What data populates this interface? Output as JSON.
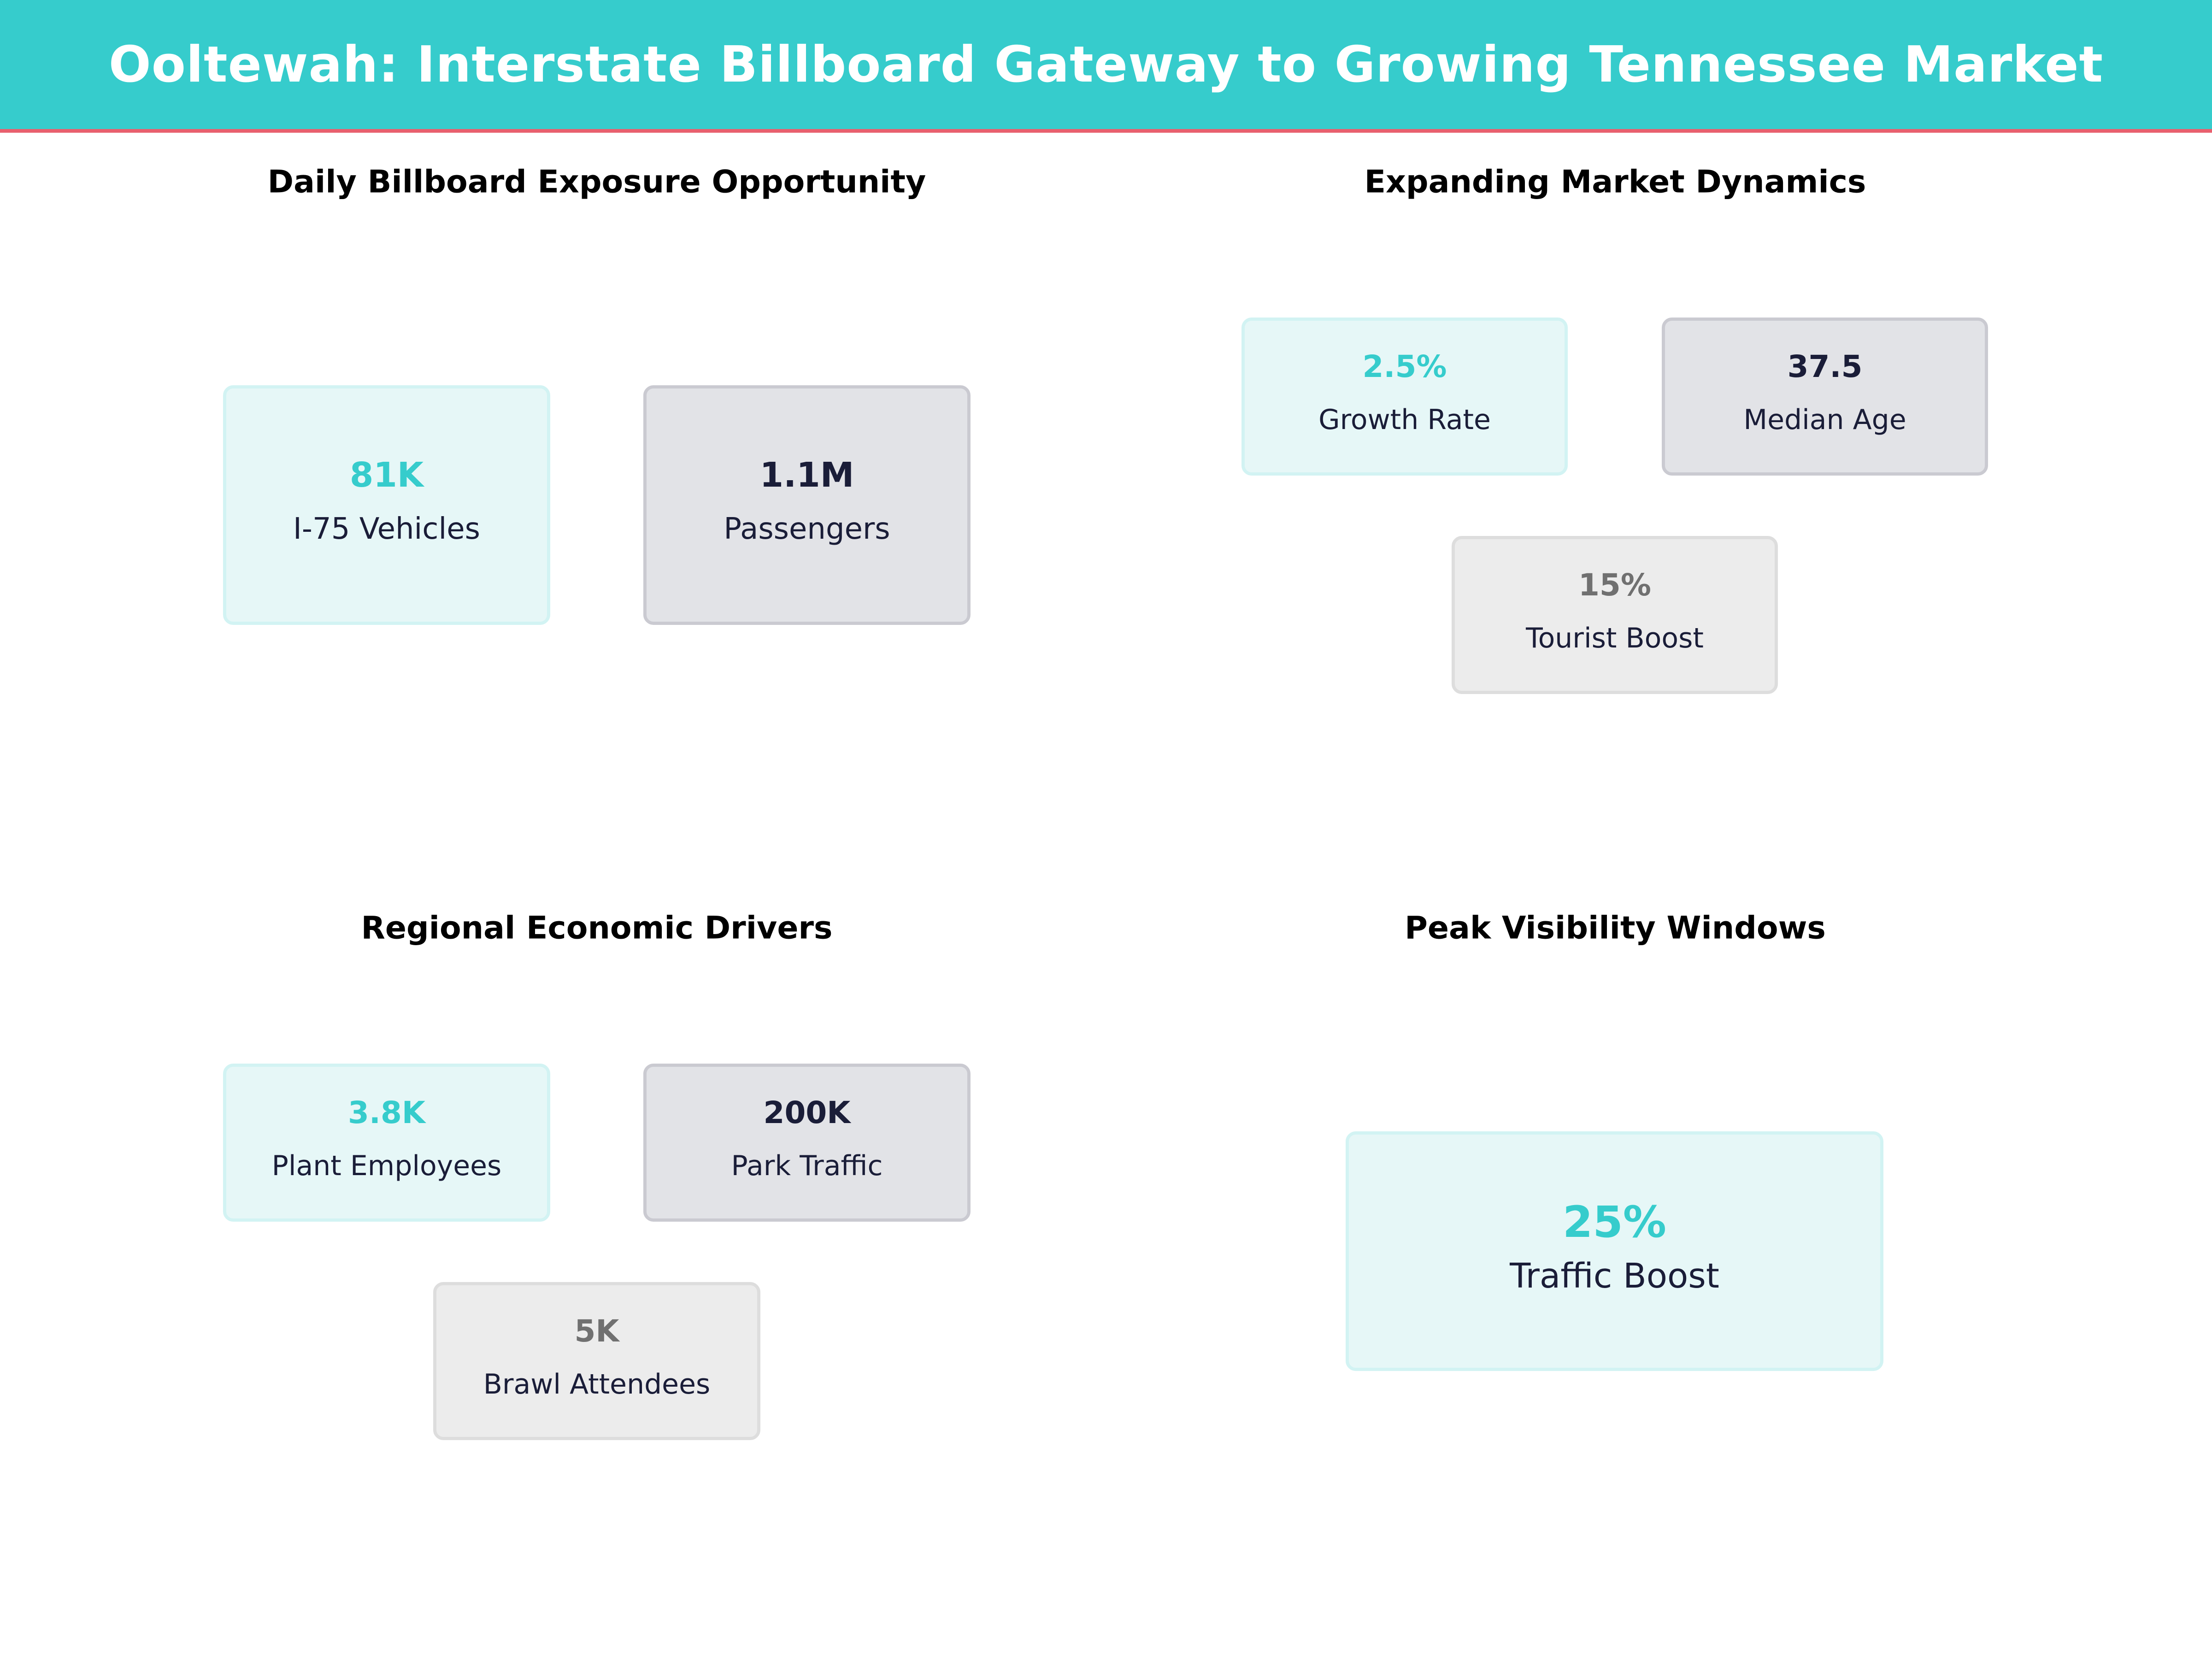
{
  "title": "Ooltewah: Interstate Billboard Gateway to Growing Tennessee Market",
  "colors": {
    "accent": "#36CCCC",
    "header_rule": "#E8606E",
    "dark": "#1A1D38",
    "muted": "#707070"
  },
  "panels": [
    {
      "title": "Daily Billboard Exposure Opportunity",
      "cards": [
        {
          "value": "81K",
          "label": "I-75 Vehicles"
        },
        {
          "value": "1.1M",
          "label": "Passengers"
        }
      ]
    },
    {
      "title": "Expanding Market Dynamics",
      "cards": [
        {
          "value": "2.5%",
          "label": "Growth Rate"
        },
        {
          "value": "37.5",
          "label": "Median Age"
        },
        {
          "value": "15%",
          "label": "Tourist Boost"
        }
      ]
    },
    {
      "title": "Regional Economic Drivers",
      "cards": [
        {
          "value": "3.8K",
          "label": "Plant Employees"
        },
        {
          "value": "200K",
          "label": "Park Traffic"
        },
        {
          "value": "5K",
          "label": "Brawl Attendees"
        }
      ]
    },
    {
      "title": "Peak Visibility Windows",
      "cards": [
        {
          "value": "25%",
          "label": "Traffic Boost"
        }
      ]
    }
  ]
}
